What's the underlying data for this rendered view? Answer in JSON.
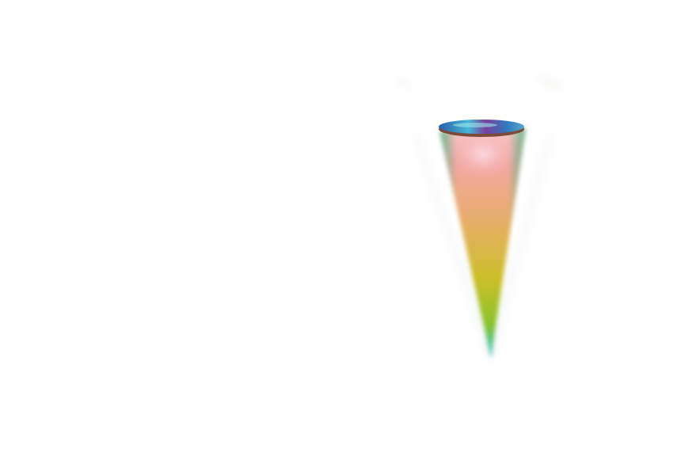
{
  "scene": {
    "object": "cone",
    "colors": {
      "top_pink": "#f6b7bd",
      "mid_orange": "#e8ad5f",
      "lower_yellow": "#c9c21e",
      "lower_green": "#7dbf2a",
      "tip_cyan": "#27c3c9",
      "cap_blue": "#3a7fc4",
      "cap_purple": "#7a3e9e",
      "background": "#ffffff"
    }
  }
}
